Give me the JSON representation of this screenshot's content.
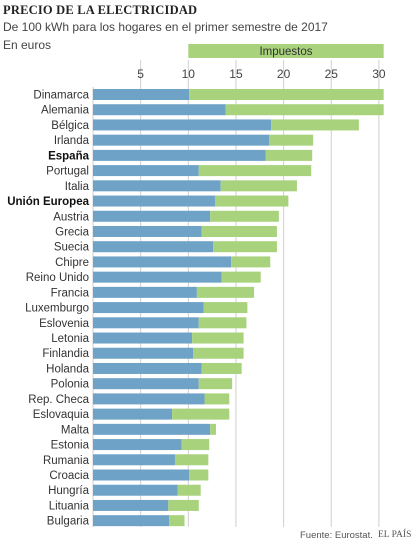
{
  "header": {
    "title": "PRECIO DE LA ELECTRICIDAD",
    "subtitle": "De 100 kWh para los hogares en el primer semestre de 2017",
    "unit": "En euros"
  },
  "footer": {
    "source": "Fuente: Eurostat.",
    "brand": "EL PAÍS"
  },
  "colors": {
    "base": "#6fa2c7",
    "tax": "#a8d27c",
    "grid": "#cfcfcf"
  },
  "chart_data": {
    "type": "bar",
    "orientation": "horizontal",
    "stacked": true,
    "xlim": [
      0,
      31.5
    ],
    "x_ticks": [
      5,
      10,
      15,
      20,
      25,
      30
    ],
    "grid": true,
    "legend_position": "top",
    "highlighted": [
      "España",
      "Unión Europea"
    ],
    "categories": [
      "Dinamarca",
      "Alemania",
      "Bélgica",
      "Irlanda",
      "España",
      "Portugal",
      "Italia",
      "Unión Europea",
      "Austria",
      "Grecia",
      "Suecia",
      "Chipre",
      "Reino Unido",
      "Francia",
      "Luxemburgo",
      "Eslovenia",
      "Letonia",
      "Finlandia",
      "Holanda",
      "Polonia",
      "Rep. Checa",
      "Eslovaquia",
      "Malta",
      "Estonia",
      "Rumania",
      "Croacia",
      "Hungría",
      "Lituania",
      "Bulgaria"
    ],
    "series": [
      {
        "values": [
          10.1,
          13.9,
          18.7,
          18.5,
          18.1,
          11.1,
          13.4,
          12.8,
          12.3,
          11.4,
          12.6,
          14.5,
          13.5,
          10.9,
          11.6,
          11.1,
          10.4,
          10.5,
          11.4,
          11.1,
          11.7,
          8.3,
          12.3,
          9.3,
          8.6,
          10.1,
          8.9,
          7.9,
          8.0
        ]
      },
      {
        "name": "Impuestos",
        "values": [
          20.4,
          16.6,
          9.2,
          4.6,
          4.9,
          11.8,
          8.0,
          7.7,
          7.2,
          7.9,
          6.7,
          4.1,
          4.1,
          6.0,
          4.6,
          5.0,
          5.4,
          5.3,
          4.2,
          3.5,
          2.6,
          6.0,
          0.6,
          2.9,
          3.5,
          2.0,
          2.4,
          3.2,
          1.6
        ]
      }
    ]
  }
}
